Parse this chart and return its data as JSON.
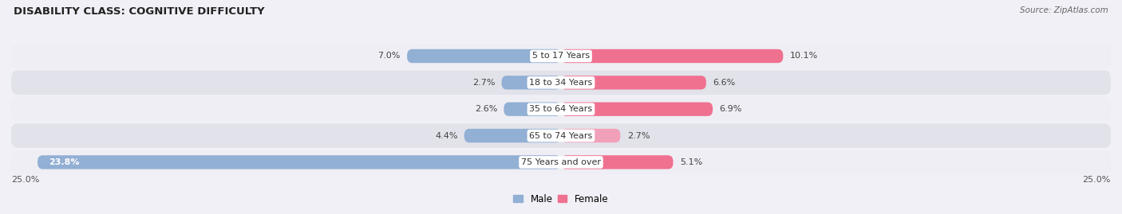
{
  "title": "DISABILITY CLASS: COGNITIVE DIFFICULTY",
  "source": "Source: ZipAtlas.com",
  "categories": [
    "5 to 17 Years",
    "18 to 34 Years",
    "35 to 64 Years",
    "65 to 74 Years",
    "75 Years and over"
  ],
  "male_values": [
    7.0,
    2.7,
    2.6,
    4.4,
    23.8
  ],
  "female_values": [
    10.1,
    6.6,
    6.9,
    2.7,
    5.1
  ],
  "male_color": "#92afd4",
  "female_color": "#f07090",
  "female_color_light": "#f0a0b8",
  "row_bg_color_light": "#eeeef4",
  "row_bg_color_dark": "#e2e2ea",
  "xlim": 25.0,
  "bar_height": 0.52,
  "title_fontsize": 9.5,
  "label_fontsize": 8,
  "category_fontsize": 8,
  "legend_fontsize": 8.5,
  "source_fontsize": 7.5
}
